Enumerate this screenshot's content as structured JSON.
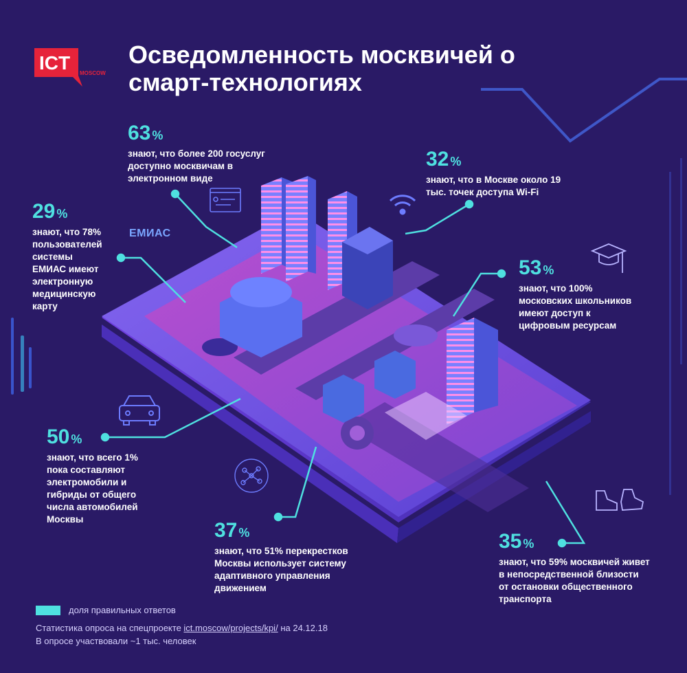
{
  "title": "Осведомленность москвичей о смарт-технологиях",
  "logo": {
    "text": "ICT",
    "subtext": "MOSCOW",
    "color": "#e6233a"
  },
  "colors": {
    "background": "#2a1a66",
    "accent": "#4fe0e0",
    "phone": "#5a46d6"
  },
  "emias_label": "ЕМИАС",
  "stats": [
    {
      "value": "63",
      "unit": "%",
      "text": [
        "знают, что более 200 госуслуг",
        "доступно москвичам в",
        "электронном виде"
      ]
    },
    {
      "value": "32",
      "unit": "%",
      "text": [
        "знают, что в Москве около 19",
        "тыс. точек доступа Wi-Fi"
      ]
    },
    {
      "value": "29",
      "unit": "%",
      "text": [
        "знают, что 78%",
        "пользователей",
        "системы",
        "ЕМИАС имеют",
        "электронную",
        "медицинскую",
        "карту"
      ]
    },
    {
      "value": "53",
      "unit": "%",
      "text": [
        "знают, что 100%",
        "московских школьников",
        "имеют доступ к",
        "цифровым ресурсам"
      ]
    },
    {
      "value": "50",
      "unit": "%",
      "text": [
        "знают, что всего 1%",
        "пока составляют",
        "электромобили и",
        "гибриды от общего",
        "числа автомобилей",
        "Москвы"
      ]
    },
    {
      "value": "37",
      "unit": "%",
      "text": [
        "знают, что 51% перекрестков",
        "Москвы использует систему",
        "адаптивного управления",
        "движением"
      ]
    },
    {
      "value": "35",
      "unit": "%",
      "text": [
        "знают, что 59% москвичей живет",
        "в непосредственной близости",
        "от остановки общественного",
        "транспорта"
      ]
    }
  ],
  "legend": "доля правильных ответов",
  "footer": {
    "line1_prefix": "Статистика опроса на спецпроекте",
    "link": "ict.moscow/projects/kpi/",
    "line1_suffix": "на 24.12.18",
    "line2": "В опросе участвовали ~1 тыс. человек"
  },
  "icons": [
    "document-icon",
    "wifi-icon",
    "graduation-cap-icon",
    "car-icon",
    "neural-network-icon",
    "sneakers-icon"
  ]
}
